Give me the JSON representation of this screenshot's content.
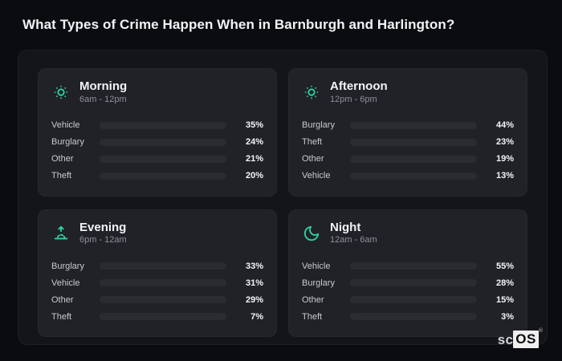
{
  "title": "What Types of Crime Happen When in Barnburgh and Harlington?",
  "colors": {
    "vehicle": "#3b78de",
    "burglary": "#e0741c",
    "other": "#6a7a90",
    "theft": "#9f55e8",
    "icon": "#2ed3a0",
    "track": "#2b2c32"
  },
  "chart_data": [
    {
      "type": "bar",
      "orientation": "horizontal",
      "title": "Morning",
      "subtitle": "6am - 12pm",
      "icon": "sun-dim-icon",
      "xlim": [
        0,
        100
      ],
      "rows": [
        {
          "category": "Vehicle",
          "value": 35,
          "label": "35%",
          "color_key": "vehicle"
        },
        {
          "category": "Burglary",
          "value": 24,
          "label": "24%",
          "color_key": "burglary"
        },
        {
          "category": "Other",
          "value": 21,
          "label": "21%",
          "color_key": "other"
        },
        {
          "category": "Theft",
          "value": 20,
          "label": "20%",
          "color_key": "theft"
        }
      ]
    },
    {
      "type": "bar",
      "orientation": "horizontal",
      "title": "Afternoon",
      "subtitle": "12pm - 6pm",
      "icon": "sun-dim-icon",
      "xlim": [
        0,
        100
      ],
      "rows": [
        {
          "category": "Burglary",
          "value": 44,
          "label": "44%",
          "color_key": "burglary"
        },
        {
          "category": "Theft",
          "value": 23,
          "label": "23%",
          "color_key": "theft"
        },
        {
          "category": "Other",
          "value": 19,
          "label": "19%",
          "color_key": "other"
        },
        {
          "category": "Vehicle",
          "value": 13,
          "label": "13%",
          "color_key": "vehicle"
        }
      ]
    },
    {
      "type": "bar",
      "orientation": "horizontal",
      "title": "Evening",
      "subtitle": "6pm - 12am",
      "icon": "sunrise-icon",
      "xlim": [
        0,
        100
      ],
      "rows": [
        {
          "category": "Burglary",
          "value": 33,
          "label": "33%",
          "color_key": "burglary"
        },
        {
          "category": "Vehicle",
          "value": 31,
          "label": "31%",
          "color_key": "vehicle"
        },
        {
          "category": "Other",
          "value": 29,
          "label": "29%",
          "color_key": "other"
        },
        {
          "category": "Theft",
          "value": 7,
          "label": "7%",
          "color_key": "theft"
        }
      ]
    },
    {
      "type": "bar",
      "orientation": "horizontal",
      "title": "Night",
      "subtitle": "12am - 6am",
      "icon": "moon-icon",
      "xlim": [
        0,
        100
      ],
      "rows": [
        {
          "category": "Vehicle",
          "value": 55,
          "label": "55%",
          "color_key": "vehicle"
        },
        {
          "category": "Burglary",
          "value": 28,
          "label": "28%",
          "color_key": "burglary"
        },
        {
          "category": "Other",
          "value": 15,
          "label": "15%",
          "color_key": "other"
        },
        {
          "category": "Theft",
          "value": 3,
          "label": "3%",
          "color_key": "theft"
        }
      ]
    }
  ],
  "logo": {
    "prefix": "sc",
    "suffix": "OS",
    "registered": "®"
  }
}
